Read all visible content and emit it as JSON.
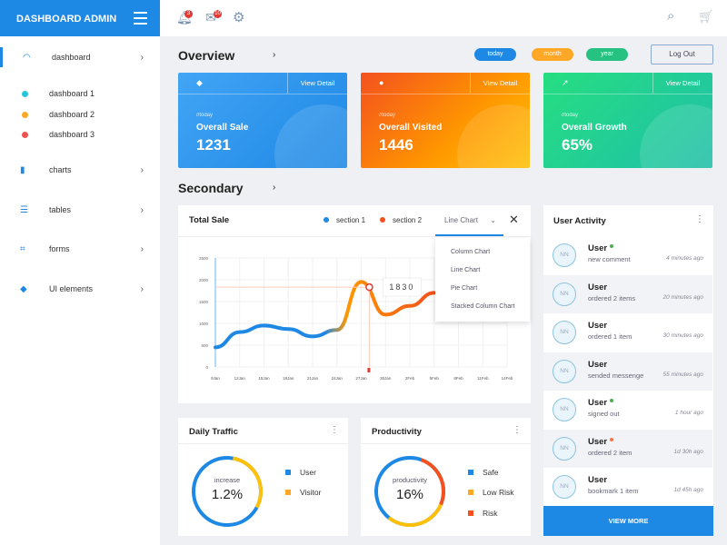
{
  "brand": "DASHBOARD ADMIN",
  "sidebar": {
    "items": [
      {
        "label": "dashboard",
        "icon": "gauge-icon"
      },
      {
        "label": "dashboard 1",
        "color": "#26c6da"
      },
      {
        "label": "dashboard 2",
        "color": "#ffa726"
      },
      {
        "label": "dashboard 3",
        "color": "#ef5350"
      },
      {
        "label": "charts",
        "icon": "bar-chart-icon"
      },
      {
        "label": "tables",
        "icon": "table-icon"
      },
      {
        "label": "forms",
        "icon": "forms-icon"
      },
      {
        "label": "UI elements",
        "icon": "layers-icon"
      }
    ]
  },
  "topbar": {
    "notifications": "3",
    "messages": "10"
  },
  "overview": {
    "title": "Overview",
    "filters": [
      "today",
      "month",
      "year"
    ],
    "logout": "Log Out"
  },
  "cards": [
    {
      "label": "//today",
      "title": "Overall Sale",
      "value": "1231",
      "view": "View Detail"
    },
    {
      "label": "//today",
      "title": "Overall Visited",
      "value": "1446",
      "view": "View Detail"
    },
    {
      "label": "//today",
      "title": "Overall Growth",
      "value": "65%",
      "view": "View Detail"
    }
  ],
  "secondary": {
    "title": "Secondary"
  },
  "total_sale": {
    "title": "Total Sale",
    "legend": [
      "section 1",
      "section 2"
    ],
    "select": "Line Chart",
    "options": [
      "Column Chart",
      "Line Chart",
      "Pie Chart",
      "Stacked Column Chart"
    ],
    "tooltip": "1830"
  },
  "chart_data": {
    "type": "line",
    "x": [
      "9Jan",
      "12Jan",
      "15Jan",
      "18Jan",
      "21Jan",
      "24Jan",
      "27Jan",
      "30Jan",
      "2Feb",
      "5Feb",
      "8Feb",
      "11Feb",
      "14Feb"
    ],
    "series": [
      {
        "name": "section 1",
        "values": [
          450,
          800,
          950,
          870,
          700,
          850,
          1950,
          1200,
          1400,
          1700,
          null,
          null,
          null
        ]
      }
    ],
    "yticks": [
      0,
      500,
      1000,
      1500,
      2000,
      2500
    ],
    "ylim": [
      0,
      2500
    ],
    "highlight": {
      "x": "28Jan",
      "y": 1830
    }
  },
  "daily_traffic": {
    "title": "Daily Traffic",
    "center_label": "increase",
    "center_value": "1.2%",
    "legend": [
      {
        "label": "User",
        "color": "#1e88e5"
      },
      {
        "label": "Visitor",
        "color": "#ffa726"
      }
    ]
  },
  "productivity": {
    "title": "Productivity",
    "center_label": "productivity",
    "center_value": "16%",
    "legend": [
      {
        "label": "Safe",
        "color": "#1e88e5"
      },
      {
        "label": "Low Risk",
        "color": "#ffa726"
      },
      {
        "label": "Risk",
        "color": "#f4511e"
      }
    ]
  },
  "user_activity": {
    "title": "User Activity",
    "view_more": "VIEW MORE",
    "items": [
      {
        "initials": "NN",
        "name": "User",
        "desc": "new comment",
        "time": "4 minutes ago",
        "status": "#4caf50"
      },
      {
        "initials": "NN",
        "name": "User",
        "desc": "ordered 2 items",
        "time": "20 minutes ago"
      },
      {
        "initials": "NN",
        "name": "User",
        "desc": "ordered 1 item",
        "time": "30 minutes ago"
      },
      {
        "initials": "NN",
        "name": "User",
        "desc": "sended messenge",
        "time": "55 minutes ago"
      },
      {
        "initials": "NN",
        "name": "User",
        "desc": "signed out",
        "time": "1 hour ago",
        "status": "#4caf50"
      },
      {
        "initials": "NN",
        "name": "User",
        "desc": "ordered 2 item",
        "time": "1d 30h ago",
        "status": "#ff7043"
      },
      {
        "initials": "NN",
        "name": "User",
        "desc": "bookmark 1 item",
        "time": "1d 45h ago"
      }
    ]
  }
}
